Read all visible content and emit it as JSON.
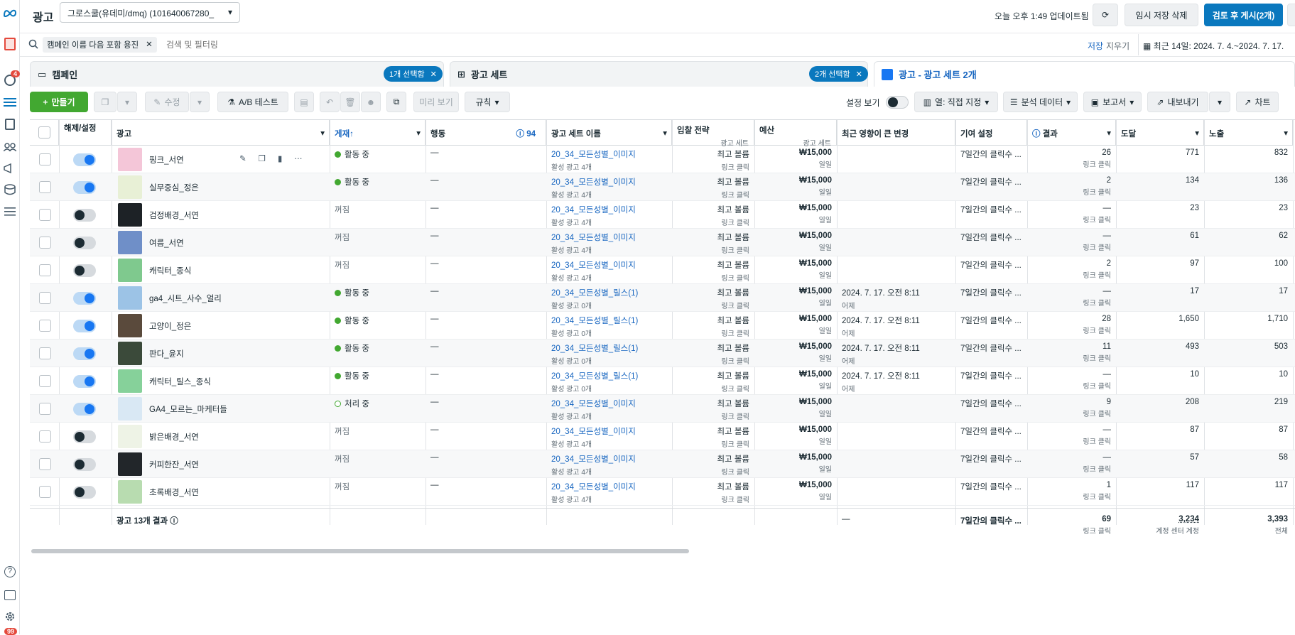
{
  "app": {
    "title": "광고",
    "account": "그로스쿨(유데미/dmq) (101640067280_",
    "updated": "오늘 오후 1:49 업데이트됨",
    "discard": "임시 저장 삭제",
    "publish": "검토 후 게시(2개)",
    "more": "...",
    "notif_badge": "4",
    "bottom_badge": "99"
  },
  "search": {
    "filter_chip": "캠페인 이름 다음 포함 용진",
    "placeholder": "검색 및 필터링",
    "save": "저장",
    "clear": "지우기",
    "date_range": "최근 14일: 2024. 7. 4.~2024. 7. 17."
  },
  "tabs": [
    {
      "label": "캠페인",
      "selected": "1개 선택함"
    },
    {
      "label": "광고 세트",
      "selected": "2개 선택함"
    },
    {
      "label": "광고 - 광고 세트 2개"
    }
  ],
  "toolbar": {
    "create": "만들기",
    "edit": "수정",
    "ab_test": "A/B 테스트",
    "preview": "미리 보기",
    "rules": "규칙",
    "view_settings": "설정 보기",
    "columns": "열: 직접 지정",
    "breakdown": "분석 데이터",
    "reports": "보고서",
    "export": "내보내기",
    "chart": "차트"
  },
  "columns": {
    "toggle": "해제/설정",
    "ad": "광고",
    "delivery": "게재↑",
    "actions": "행동",
    "actions_count": "94",
    "adset": "광고 세트 이름",
    "bid": "입찰 전략",
    "bid_sub": "광고 세트",
    "budget": "예산",
    "budget_sub": "광고 세트",
    "recent": "최근 영향이 큰 변경",
    "attribution": "기여 설정",
    "results": "결과",
    "reach": "도달",
    "impressions": "노출"
  },
  "rows": [
    {
      "name": "핑크_서연",
      "on": true,
      "delivery": "활동 중",
      "status": "active",
      "adset": "20_34_모든성별_이미지",
      "adset_sub": "활성 광고 4개",
      "recent": "",
      "recent_sub": "",
      "results": "26",
      "reach": "771",
      "impr": "832",
      "thumb": "#f4c6d8"
    },
    {
      "name": "실무중심_정은",
      "on": true,
      "delivery": "활동 중",
      "status": "active",
      "adset": "20_34_모든성별_이미지",
      "adset_sub": "활성 광고 4개",
      "recent": "",
      "recent_sub": "",
      "results": "2",
      "reach": "134",
      "impr": "136",
      "thumb": "#e8f0d6"
    },
    {
      "name": "검정배경_서연",
      "on": false,
      "delivery": "꺼짐",
      "status": "off",
      "adset": "20_34_모든성별_이미지",
      "adset_sub": "활성 광고 4개",
      "recent": "",
      "recent_sub": "",
      "results": "—",
      "reach": "23",
      "impr": "23",
      "thumb": "#1d2226"
    },
    {
      "name": "여름_서연",
      "on": false,
      "delivery": "꺼짐",
      "status": "off",
      "adset": "20_34_모든성별_이미지",
      "adset_sub": "활성 광고 4개",
      "recent": "",
      "recent_sub": "",
      "results": "—",
      "reach": "61",
      "impr": "62",
      "thumb": "#6f8fc8"
    },
    {
      "name": "캐릭터_종식",
      "on": false,
      "delivery": "꺼짐",
      "status": "off",
      "adset": "20_34_모든성별_이미지",
      "adset_sub": "활성 광고 4개",
      "recent": "",
      "recent_sub": "",
      "results": "2",
      "reach": "97",
      "impr": "100",
      "thumb": "#7fc98e"
    },
    {
      "name": "ga4_시트_사수_얼리",
      "on": true,
      "delivery": "활동 중",
      "status": "active",
      "adset": "20_34_모든성별_릴스(1)",
      "adset_sub": "활성 광고 0개",
      "recent": "2024. 7. 17. 오전 8:11",
      "recent_sub": "어제",
      "results": "—",
      "reach": "17",
      "impr": "17",
      "thumb": "#9cc3e6"
    },
    {
      "name": "고양이_정은",
      "on": true,
      "delivery": "활동 중",
      "status": "active",
      "adset": "20_34_모든성별_릴스(1)",
      "adset_sub": "활성 광고 0개",
      "recent": "2024. 7. 17. 오전 8:11",
      "recent_sub": "어제",
      "results": "28",
      "reach": "1,650",
      "impr": "1,710",
      "thumb": "#5a4a3c"
    },
    {
      "name": "판다_윤지",
      "on": true,
      "delivery": "활동 중",
      "status": "active",
      "adset": "20_34_모든성별_릴스(1)",
      "adset_sub": "활성 광고 0개",
      "recent": "2024. 7. 17. 오전 8:11",
      "recent_sub": "어제",
      "results": "11",
      "reach": "493",
      "impr": "503",
      "thumb": "#3b4a3a"
    },
    {
      "name": "캐릭터_릴스_종식",
      "on": true,
      "delivery": "활동 중",
      "status": "active",
      "adset": "20_34_모든성별_릴스(1)",
      "adset_sub": "활성 광고 0개",
      "recent": "2024. 7. 17. 오전 8:11",
      "recent_sub": "어제",
      "results": "—",
      "reach": "10",
      "impr": "10",
      "thumb": "#86d19a"
    },
    {
      "name": "GA4_모르는_마케터들",
      "on": true,
      "delivery": "처리 중",
      "status": "processing",
      "adset": "20_34_모든성별_이미지",
      "adset_sub": "활성 광고 4개",
      "recent": "",
      "recent_sub": "",
      "results": "9",
      "reach": "208",
      "impr": "219",
      "thumb": "#d9e8f4"
    },
    {
      "name": "밝은배경_서연",
      "on": false,
      "delivery": "꺼짐",
      "status": "off",
      "adset": "20_34_모든성별_이미지",
      "adset_sub": "활성 광고 4개",
      "recent": "",
      "recent_sub": "",
      "results": "—",
      "reach": "87",
      "impr": "87",
      "thumb": "#eef3e6"
    },
    {
      "name": "커피한잔_서연",
      "on": false,
      "delivery": "꺼짐",
      "status": "off",
      "adset": "20_34_모든성별_이미지",
      "adset_sub": "활성 광고 4개",
      "recent": "",
      "recent_sub": "",
      "results": "—",
      "reach": "57",
      "impr": "58",
      "thumb": "#22262a"
    },
    {
      "name": "초록배경_서연",
      "on": false,
      "delivery": "꺼짐",
      "status": "off",
      "adset": "20_34_모든성별_이미지",
      "adset_sub": "활성 광고 4개",
      "recent": "",
      "recent_sub": "",
      "results": "1",
      "reach": "117",
      "impr": "117",
      "thumb": "#b8dcb0"
    }
  ],
  "common": {
    "actions": "—",
    "bid": "최고 볼륨",
    "bid_sub": "링크 클릭",
    "budget": "₩15,000",
    "budget_sub": "일일",
    "attribution": "7일간의 클릭수 ...",
    "results_sub": "링크 클릭"
  },
  "summary": {
    "label": "광고 13개 결과",
    "recent": "—",
    "attribution": "7일간의 클릭수 ...",
    "results": "69",
    "results_sub": "링크 클릭",
    "reach": "3,234",
    "reach_sub": "계정 센터 계정",
    "impr": "3,393",
    "impr_sub": "전체"
  }
}
